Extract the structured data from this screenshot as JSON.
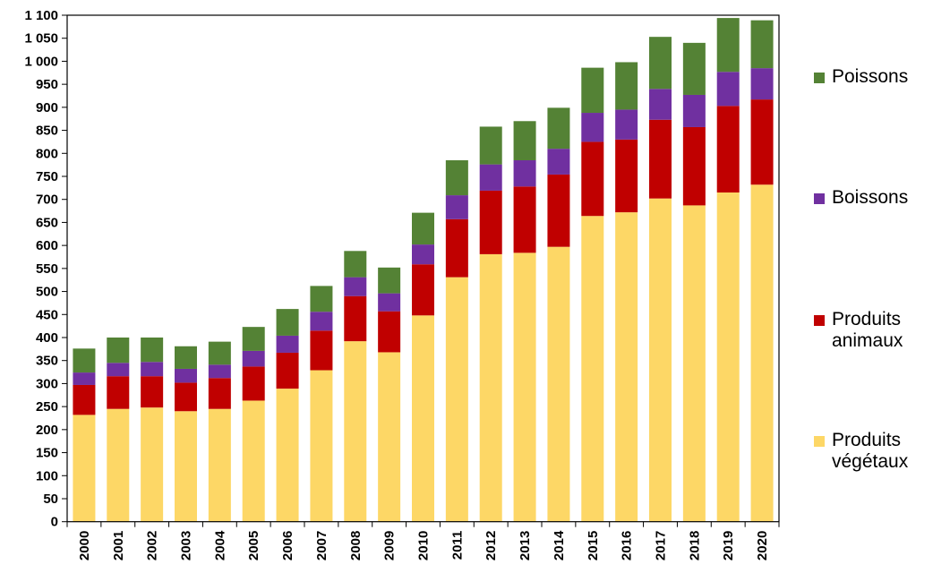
{
  "chart_data": {
    "type": "bar",
    "stacked": true,
    "title": "",
    "xlabel": "",
    "ylabel": "",
    "ylim": [
      0,
      1100
    ],
    "ytick_step": 50,
    "ytick_labels": [
      "0",
      "50",
      "100",
      "150",
      "200",
      "250",
      "300",
      "350",
      "400",
      "450",
      "500",
      "550",
      "600",
      "650",
      "700",
      "750",
      "800",
      "850",
      "900",
      "950",
      "1 000",
      "1 050",
      "1 100"
    ],
    "grid": false,
    "legend_position": "right",
    "categories": [
      "2000",
      "2001",
      "2002",
      "2003",
      "2004",
      "2005",
      "2006",
      "2007",
      "2008",
      "2009",
      "2010",
      "2011",
      "2012",
      "2013",
      "2014",
      "2015",
      "2016",
      "2017",
      "2018",
      "2019",
      "2020"
    ],
    "series": [
      {
        "name": "Produits végétaux",
        "legend_label": "Produits\nvégétaux",
        "color": "#FDD766",
        "values": [
          232,
          245,
          248,
          240,
          245,
          263,
          289,
          329,
          392,
          368,
          448,
          531,
          581,
          584,
          597,
          664,
          672,
          702,
          687,
          715,
          732
        ]
      },
      {
        "name": "Produits animaux",
        "legend_label": "Produits\nanimaux",
        "color": "#C00000",
        "values": [
          65,
          71,
          68,
          62,
          67,
          74,
          78,
          86,
          98,
          89,
          111,
          126,
          138,
          144,
          157,
          161,
          158,
          171,
          170,
          188,
          185
        ]
      },
      {
        "name": "Boissons",
        "legend_label": "Boissons",
        "color": "#7030A0",
        "values": [
          27,
          29,
          31,
          30,
          29,
          34,
          37,
          41,
          41,
          39,
          43,
          52,
          57,
          57,
          56,
          63,
          65,
          67,
          70,
          74,
          68
        ]
      },
      {
        "name": "Poissons",
        "legend_label": "Poissons",
        "color": "#548235",
        "values": [
          52,
          55,
          53,
          49,
          50,
          52,
          58,
          56,
          57,
          56,
          69,
          76,
          82,
          85,
          89,
          98,
          103,
          113,
          113,
          117,
          104
        ]
      }
    ]
  }
}
